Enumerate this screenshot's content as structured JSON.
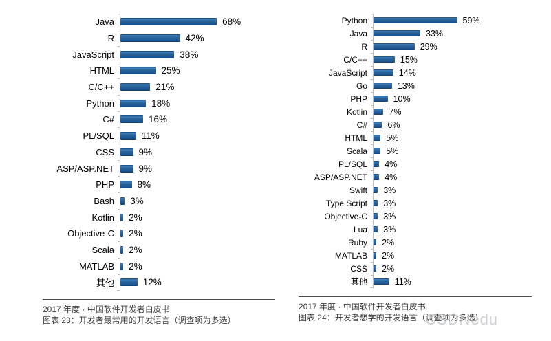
{
  "watermark": {
    "text": "CSDNedu",
    "color": "#bec1c5"
  },
  "bar_color": "#1d5796",
  "axis_color": "#bdbdbd",
  "chart_data": [
    {
      "type": "bar",
      "orientation": "horizontal",
      "title": "",
      "categories": [
        "Java",
        "R",
        "JavaScript",
        "HTML",
        "C/C++",
        "Python",
        "C#",
        "PL/SQL",
        "CSS",
        "ASP/ASP.NET",
        "PHP",
        "Bash",
        "Kotlin",
        "Objective-C",
        "Scala",
        "MATLAB",
        "其他"
      ],
      "values": [
        68,
        42,
        38,
        25,
        21,
        18,
        16,
        11,
        9,
        9,
        8,
        3,
        2,
        2,
        2,
        2,
        12
      ],
      "value_suffix": "%",
      "xlim": [
        0,
        75
      ],
      "grid": false,
      "legend": false,
      "source_line": "2017 年度 · 中国软件开发者白皮书",
      "caption": "图表 23：开发者最常用的开发语言（调查项为多选）"
    },
    {
      "type": "bar",
      "orientation": "horizontal",
      "title": "",
      "categories": [
        "Python",
        "Java",
        "R",
        "C/C++",
        "JavaScript",
        "Go",
        "PHP",
        "Kotlin",
        "C#",
        "HTML",
        "Scala",
        "PL/SQL",
        "ASP/ASP.NET",
        "Swift",
        "Type Script",
        "Objective-C",
        "Lua",
        "Ruby",
        "MATLAB",
        "CSS",
        "其他"
      ],
      "values": [
        59,
        33,
        29,
        15,
        14,
        13,
        10,
        7,
        6,
        5,
        5,
        4,
        4,
        3,
        3,
        3,
        3,
        2,
        2,
        2,
        11
      ],
      "value_suffix": "%",
      "xlim": [
        0,
        75
      ],
      "grid": false,
      "legend": false,
      "source_line": "2017 年度 · 中国软件开发者白皮书",
      "caption": "图表 24：开发者想学的开发语言（调查项为多选）"
    }
  ]
}
